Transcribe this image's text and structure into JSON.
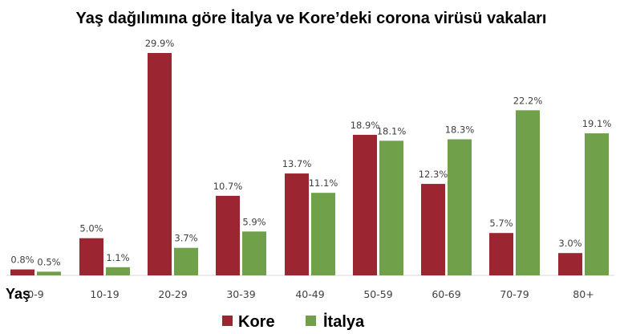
{
  "chart_data": {
    "type": "bar",
    "title": "Yaş dağılımına göre İtalya ve Kore’deki corona virüsü vakaları",
    "xlabel": "Yaş",
    "ylabel": "",
    "categories": [
      "0-9",
      "10-19",
      "20-29",
      "30-39",
      "40-49",
      "50-59",
      "60-69",
      "70-79",
      "80+"
    ],
    "series": [
      {
        "name": "Kore",
        "color": "#9b2631",
        "values": [
          0.8,
          5.0,
          29.9,
          10.7,
          13.7,
          18.9,
          12.3,
          5.7,
          3.0
        ],
        "labels": [
          "0.8%",
          "5.0%",
          "29.9%",
          "10.7%",
          "13.7%",
          "18.9%",
          "12.3%",
          "5.7%",
          "3.0%"
        ]
      },
      {
        "name": "İtalya",
        "color": "#70a04a",
        "values": [
          0.5,
          1.1,
          3.7,
          5.9,
          11.1,
          18.1,
          18.3,
          22.2,
          19.1
        ],
        "labels": [
          "0.5%",
          "1.1%",
          "3.7%",
          "5.9%",
          "11.1%",
          "18.1%",
          "18.3%",
          "22.2%",
          "19.1%"
        ]
      }
    ],
    "ylim": [
      0,
      30
    ],
    "grid": false,
    "legend_position": "bottom"
  }
}
